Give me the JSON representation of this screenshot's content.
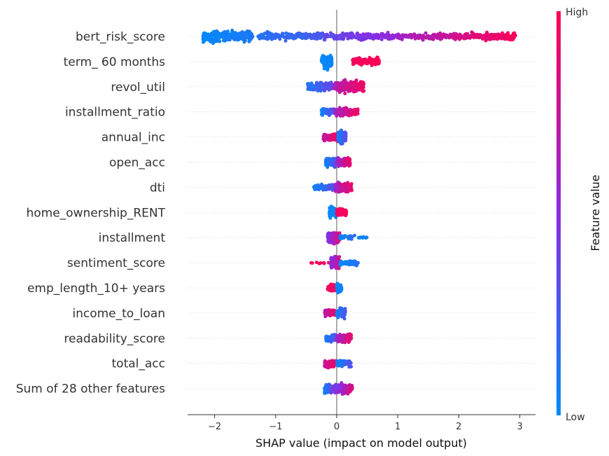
{
  "chart_data": {
    "type": "scatter",
    "subtype": "shap-beeswarm",
    "title": "",
    "xlabel": "SHAP value (impact on model output)",
    "ylabel": "",
    "xlim": [
      -2.45,
      3.3
    ],
    "x_ticks": [
      -2,
      -1,
      0,
      1,
      2,
      3
    ],
    "x_tick_labels": [
      "−2",
      "−1",
      "0",
      "1",
      "2",
      "3"
    ],
    "zero_line": true,
    "grid": false,
    "colorbar": {
      "title": "Feature value",
      "high_label": "High",
      "low_label": "Low",
      "low_color": "#008bfb",
      "mid_color": "#8a2be2",
      "high_color": "#ff0052"
    },
    "features": [
      {
        "name": "bert_risk_score",
        "clusters": [
          {
            "x": [
              -2.2,
              -1.4
            ],
            "c": [
              0.0,
              0.12
            ],
            "w": 0.9,
            "n": 240
          },
          {
            "x": [
              -1.4,
              -0.2
            ],
            "c": [
              0.08,
              0.3
            ],
            "w": 0.55,
            "n": 160
          },
          {
            "x": [
              -0.2,
              1.0
            ],
            "c": [
              0.3,
              0.6
            ],
            "w": 0.55,
            "n": 150
          },
          {
            "x": [
              1.0,
              2.0
            ],
            "c": [
              0.55,
              0.85
            ],
            "w": 0.45,
            "n": 150
          },
          {
            "x": [
              2.0,
              2.95
            ],
            "c": [
              0.8,
              1.0
            ],
            "w": 0.55,
            "n": 170
          }
        ]
      },
      {
        "name": "term_ 60 months",
        "clusters": [
          {
            "x": [
              -0.25,
              -0.08
            ],
            "c": [
              0.0,
              0.05
            ],
            "w": 1.0,
            "n": 110
          },
          {
            "x": [
              0.25,
              0.7
            ],
            "c": [
              0.95,
              1.0
            ],
            "w": 0.55,
            "n": 120
          }
        ]
      },
      {
        "name": "revol_util",
        "clusters": [
          {
            "x": [
              -0.48,
              -0.05
            ],
            "c": [
              0.05,
              0.45
            ],
            "w": 0.6,
            "n": 110
          },
          {
            "x": [
              -0.05,
              0.45
            ],
            "c": [
              0.6,
              1.0
            ],
            "w": 0.85,
            "n": 170
          }
        ]
      },
      {
        "name": "installment_ratio",
        "clusters": [
          {
            "x": [
              -0.25,
              -0.02
            ],
            "c": [
              0.0,
              0.45
            ],
            "w": 0.5,
            "n": 80
          },
          {
            "x": [
              -0.02,
              0.35
            ],
            "c": [
              0.55,
              1.0
            ],
            "w": 0.55,
            "n": 130
          }
        ]
      },
      {
        "name": "annual_inc",
        "clusters": [
          {
            "x": [
              -0.22,
              0.02
            ],
            "c": [
              0.7,
              1.0
            ],
            "w": 0.55,
            "n": 110
          },
          {
            "x": [
              0.02,
              0.15
            ],
            "c": [
              0.0,
              0.35
            ],
            "w": 0.9,
            "n": 110
          }
        ]
      },
      {
        "name": "open_acc",
        "clusters": [
          {
            "x": [
              -0.18,
              0.0
            ],
            "c": [
              0.0,
              0.4
            ],
            "w": 0.7,
            "n": 100
          },
          {
            "x": [
              0.0,
              0.22
            ],
            "c": [
              0.5,
              1.0
            ],
            "w": 0.6,
            "n": 110
          }
        ]
      },
      {
        "name": "dti",
        "clusters": [
          {
            "x": [
              -0.38,
              -0.02
            ],
            "c": [
              0.0,
              0.4
            ],
            "w": 0.45,
            "n": 90
          },
          {
            "x": [
              -0.02,
              0.25
            ],
            "c": [
              0.55,
              1.0
            ],
            "w": 0.7,
            "n": 130
          }
        ]
      },
      {
        "name": "home_ownership_RENT",
        "clusters": [
          {
            "x": [
              -0.12,
              0.0
            ],
            "c": [
              0.0,
              0.08
            ],
            "w": 0.75,
            "n": 90
          },
          {
            "x": [
              0.0,
              0.16
            ],
            "c": [
              0.92,
              1.0
            ],
            "w": 0.55,
            "n": 90
          }
        ]
      },
      {
        "name": "installment",
        "clusters": [
          {
            "x": [
              -0.15,
              0.05
            ],
            "c": [
              0.4,
              0.9
            ],
            "w": 0.8,
            "n": 130
          },
          {
            "x": [
              0.05,
              0.3
            ],
            "c": [
              0.0,
              0.2
            ],
            "w": 0.3,
            "n": 40
          },
          {
            "x": [
              0.35,
              0.5
            ],
            "c": [
              0.0,
              0.1
            ],
            "w": 0.2,
            "n": 12
          }
        ]
      },
      {
        "name": "sentiment_score",
        "clusters": [
          {
            "x": [
              -0.45,
              -0.1
            ],
            "c": [
              0.9,
              1.0
            ],
            "w": 0.15,
            "n": 8
          },
          {
            "x": [
              -0.1,
              0.05
            ],
            "c": [
              0.4,
              0.9
            ],
            "w": 0.9,
            "n": 120
          },
          {
            "x": [
              0.05,
              0.35
            ],
            "c": [
              0.0,
              0.15
            ],
            "w": 0.4,
            "n": 60
          }
        ]
      },
      {
        "name": "emp_length_10+ years",
        "clusters": [
          {
            "x": [
              -0.15,
              0.0
            ],
            "c": [
              0.92,
              1.0
            ],
            "w": 0.5,
            "n": 60
          },
          {
            "x": [
              0.0,
              0.08
            ],
            "c": [
              0.0,
              0.08
            ],
            "w": 0.75,
            "n": 70
          }
        ]
      },
      {
        "name": "income_to_loan",
        "clusters": [
          {
            "x": [
              -0.2,
              0.0
            ],
            "c": [
              0.65,
              1.0
            ],
            "w": 0.5,
            "n": 70
          },
          {
            "x": [
              0.0,
              0.15
            ],
            "c": [
              0.0,
              0.35
            ],
            "w": 0.7,
            "n": 80
          }
        ]
      },
      {
        "name": "readability_score",
        "clusters": [
          {
            "x": [
              -0.18,
              0.0
            ],
            "c": [
              0.0,
              0.4
            ],
            "w": 0.5,
            "n": 70
          },
          {
            "x": [
              0.0,
              0.24
            ],
            "c": [
              0.5,
              1.0
            ],
            "w": 0.7,
            "n": 110
          }
        ]
      },
      {
        "name": "total_acc",
        "clusters": [
          {
            "x": [
              -0.2,
              0.0
            ],
            "c": [
              0.7,
              1.0
            ],
            "w": 0.55,
            "n": 70
          },
          {
            "x": [
              0.0,
              0.24
            ],
            "c": [
              0.0,
              0.35
            ],
            "w": 0.5,
            "n": 80
          }
        ]
      },
      {
        "name": "Sum of 28 other features",
        "clusters": [
          {
            "x": [
              -0.2,
              0.0
            ],
            "c": [
              0.0,
              0.6
            ],
            "w": 0.7,
            "n": 90
          },
          {
            "x": [
              0.0,
              0.26
            ],
            "c": [
              0.3,
              1.0
            ],
            "w": 0.7,
            "n": 100
          }
        ]
      }
    ]
  }
}
